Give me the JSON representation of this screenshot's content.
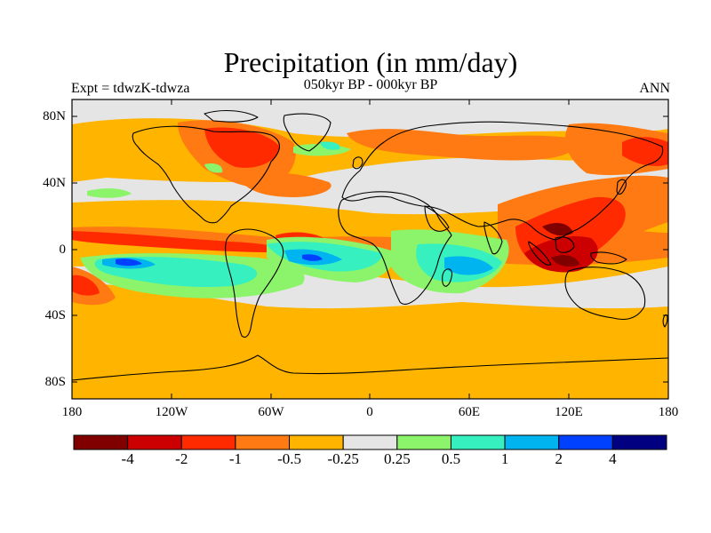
{
  "title": "Precipitation (in mm/day)",
  "experiment_label": "Expt = tdwzK-tdwza",
  "period_label": "050kyr BP - 000kyr BP",
  "season_label": "ANN",
  "latitude_labels": [
    "80N",
    "40N",
    "0",
    "40S",
    "80S"
  ],
  "longitude_labels": [
    "180",
    "120W",
    "60W",
    "0",
    "60E",
    "120E",
    "180"
  ],
  "colorbar": {
    "colors": [
      "#800000",
      "#cc0000",
      "#ff2a00",
      "#ff7a12",
      "#ffb400",
      "#e5e5e5",
      "#8cf46a",
      "#36f0c0",
      "#00b4f0",
      "#0040ff",
      "#000080"
    ],
    "tick_labels": [
      "-4",
      "-2",
      "-1",
      "-0.5",
      "-0.25",
      "0.25",
      "0.5",
      "1",
      "2",
      "4"
    ]
  }
}
